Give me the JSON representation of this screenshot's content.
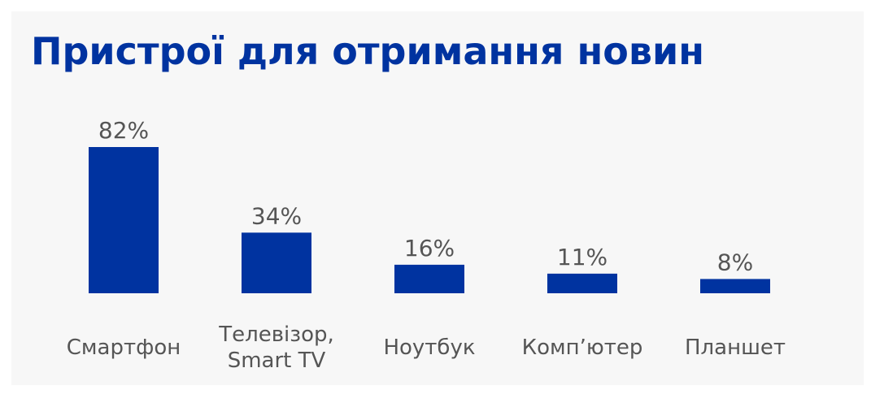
{
  "chart_data": {
    "type": "bar",
    "title": "Пристрої для отримання новин",
    "categories": [
      [
        "Смартфон"
      ],
      [
        "Телевізор,",
        "Smart TV"
      ],
      [
        "Ноутбук"
      ],
      [
        "Комп’ютер"
      ],
      [
        "Планшет"
      ]
    ],
    "values": [
      82,
      34,
      16,
      11,
      8
    ],
    "value_labels": [
      "82%",
      "34%",
      "16%",
      "11%",
      "8%"
    ],
    "ylim": [
      0,
      82
    ],
    "grid": false,
    "colors": {
      "bar": "#0033a0",
      "title": "#0033a0",
      "text": "#555555",
      "background": "#f7f7f7"
    }
  }
}
